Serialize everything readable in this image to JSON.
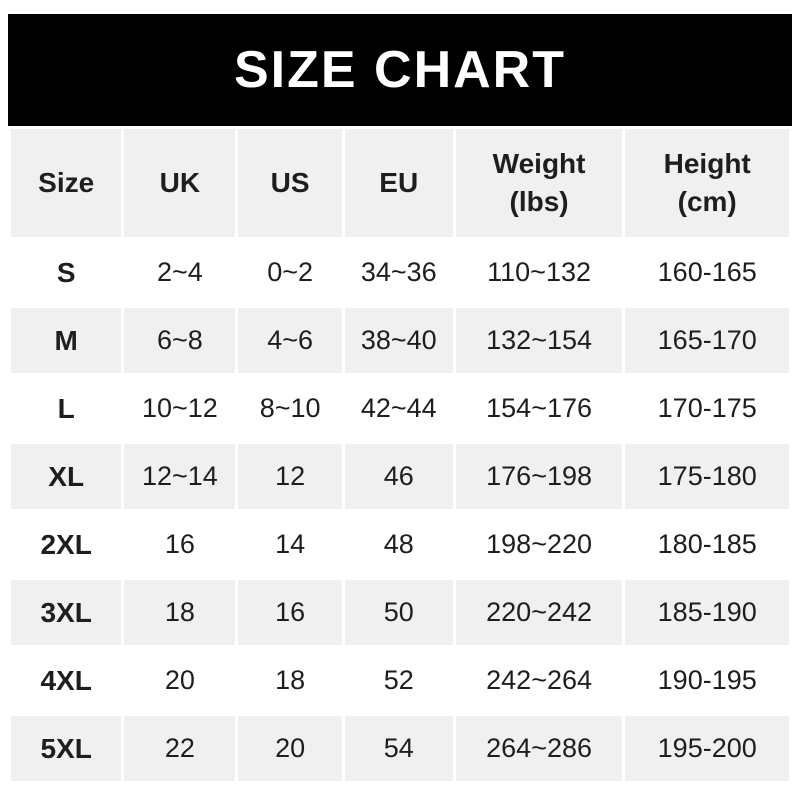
{
  "banner": {
    "title": "SIZE CHART"
  },
  "colors": {
    "banner_bg": "#000000",
    "banner_text": "#ffffff",
    "row_alt_bg": "#f0f0f1",
    "row_bg": "#ffffff",
    "text": "#1e1e1e"
  },
  "chart_data": {
    "type": "table",
    "title": "SIZE CHART",
    "columns": [
      "Size",
      "UK",
      "US",
      "EU",
      "Weight (lbs)",
      "Height (cm)"
    ],
    "rows": [
      [
        "S",
        "2~4",
        "0~2",
        "34~36",
        "110~132",
        "160-165"
      ],
      [
        "M",
        "6~8",
        "4~6",
        "38~40",
        "132~154",
        "165-170"
      ],
      [
        "L",
        "10~12",
        "8~10",
        "42~44",
        "154~176",
        "170-175"
      ],
      [
        "XL",
        "12~14",
        "12",
        "46",
        "176~198",
        "175-180"
      ],
      [
        "2XL",
        "16",
        "14",
        "48",
        "198~220",
        "180-185"
      ],
      [
        "3XL",
        "18",
        "16",
        "50",
        "220~242",
        "185-190"
      ],
      [
        "4XL",
        "20",
        "18",
        "52",
        "242~264",
        "190-195"
      ],
      [
        "5XL",
        "22",
        "20",
        "54",
        "264~286",
        "195-200"
      ]
    ]
  }
}
